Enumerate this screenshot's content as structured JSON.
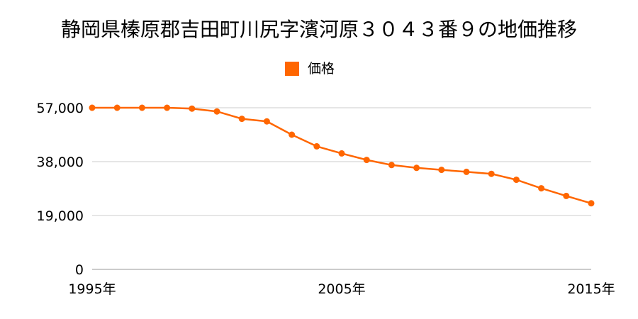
{
  "chart_data": {
    "type": "line",
    "title": "静岡県榛原郡吉田町川尻字濱河原３０４３番９の地価推移",
    "xlabel": "",
    "ylabel": "",
    "legend_position": "top-center",
    "grid": true,
    "x_tick_labels": [
      "1995年",
      "2005年",
      "2015年"
    ],
    "y_tick_labels": [
      "0",
      "19,000",
      "38,000",
      "57,000"
    ],
    "ylim": [
      0,
      57000
    ],
    "xlim": [
      1995,
      2015
    ],
    "series": [
      {
        "name": "価格",
        "color": "#ff6600",
        "x": [
          1995,
          1996,
          1997,
          1998,
          1999,
          2000,
          2001,
          2002,
          2003,
          2004,
          2005,
          2006,
          2007,
          2008,
          2009,
          2010,
          2011,
          2012,
          2013,
          2014,
          2015
        ],
        "values": [
          57000,
          57000,
          57000,
          57000,
          56700,
          55700,
          53100,
          52200,
          47500,
          43400,
          40900,
          38600,
          36800,
          35800,
          35100,
          34400,
          33700,
          31600,
          28600,
          25900,
          23300
        ]
      }
    ]
  }
}
